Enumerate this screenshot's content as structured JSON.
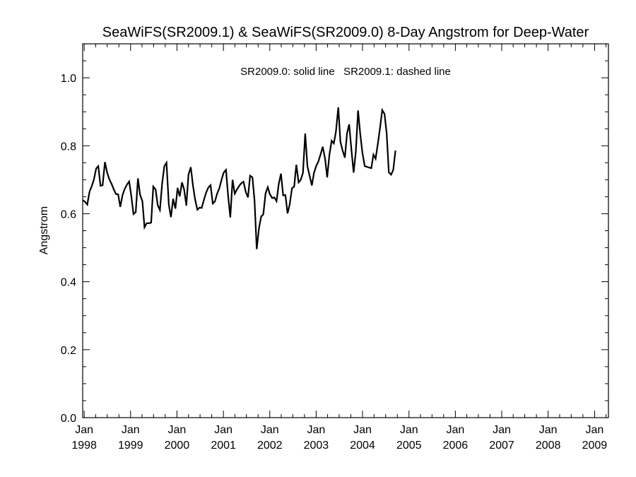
{
  "chart_data": {
    "type": "line",
    "title": "SeaWiFS(SR2009.1) & SeaWiFS(SR2009.0) 8-Day Angstrom for Deep-Water",
    "ylabel": "Angstrom",
    "xlabel": "",
    "annotation": "SR2009.0: solid line   SR2009.1: dashed line",
    "ylim": [
      0.0,
      1.1
    ],
    "xlim": [
      "1997-12-20",
      "2009-04-20"
    ],
    "yticks": [
      "0.0",
      "0.2",
      "0.4",
      "0.6",
      "0.8",
      "1.0"
    ],
    "xticks": [
      {
        "month": "Jan",
        "year": "1998",
        "date": "1998-01-01"
      },
      {
        "month": "Jan",
        "year": "1999",
        "date": "1999-01-01"
      },
      {
        "month": "Jan",
        "year": "2000",
        "date": "2000-01-01"
      },
      {
        "month": "Jan",
        "year": "2001",
        "date": "2001-01-01"
      },
      {
        "month": "Jan",
        "year": "2002",
        "date": "2002-01-01"
      },
      {
        "month": "Jan",
        "year": "2003",
        "date": "2003-01-01"
      },
      {
        "month": "Jan",
        "year": "2004",
        "date": "2004-01-01"
      },
      {
        "month": "Jan",
        "year": "2005",
        "date": "2005-01-01"
      },
      {
        "month": "Jan",
        "year": "2006",
        "date": "2006-01-01"
      },
      {
        "month": "Jan",
        "year": "2007",
        "date": "2007-01-01"
      },
      {
        "month": "Jan",
        "year": "2008",
        "date": "2008-01-01"
      },
      {
        "month": "Jan",
        "year": "2009",
        "date": "2009-01-01"
      }
    ],
    "grid": false,
    "series": [
      {
        "name": "SR2009.0",
        "style": "solid",
        "color": "#000000",
        "points": [
          [
            "1997-12-22",
            0.64
          ],
          [
            "1998-01-08",
            0.635
          ],
          [
            "1998-01-25",
            0.627
          ],
          [
            "1998-02-12",
            0.665
          ],
          [
            "1998-03-01",
            0.681
          ],
          [
            "1998-03-18",
            0.7
          ],
          [
            "1998-04-05",
            0.733
          ],
          [
            "1998-04-22",
            0.74
          ],
          [
            "1998-05-09",
            0.682
          ],
          [
            "1998-05-26",
            0.684
          ],
          [
            "1998-06-13",
            0.752
          ],
          [
            "1998-06-30",
            0.722
          ],
          [
            "1998-07-17",
            0.702
          ],
          [
            "1998-08-04",
            0.688
          ],
          [
            "1998-08-21",
            0.672
          ],
          [
            "1998-09-08",
            0.658
          ],
          [
            "1998-09-25",
            0.657
          ],
          [
            "1998-10-12",
            0.62
          ],
          [
            "1998-10-30",
            0.655
          ],
          [
            "1998-11-16",
            0.673
          ],
          [
            "1998-12-04",
            0.686
          ],
          [
            "1998-12-21",
            0.695
          ],
          [
            "1999-01-07",
            0.652
          ],
          [
            "1999-01-24",
            0.599
          ],
          [
            "1999-02-11",
            0.605
          ],
          [
            "1999-02-28",
            0.704
          ],
          [
            "1999-03-17",
            0.656
          ],
          [
            "1999-04-04",
            0.637
          ],
          [
            "1999-04-21",
            0.56
          ],
          [
            "1999-05-08",
            0.572
          ],
          [
            "1999-05-26",
            0.572
          ],
          [
            "1999-06-12",
            0.574
          ],
          [
            "1999-06-29",
            0.68
          ],
          [
            "1999-07-17",
            0.671
          ],
          [
            "1999-08-03",
            0.625
          ],
          [
            "1999-08-20",
            0.611
          ],
          [
            "1999-09-07",
            0.69
          ],
          [
            "1999-09-24",
            0.74
          ],
          [
            "1999-10-11",
            0.75
          ],
          [
            "1999-10-29",
            0.627
          ],
          [
            "1999-11-15",
            0.59
          ],
          [
            "1999-12-02",
            0.644
          ],
          [
            "1999-12-20",
            0.615
          ],
          [
            "2000-01-06",
            0.676
          ],
          [
            "2000-01-23",
            0.651
          ],
          [
            "2000-02-10",
            0.692
          ],
          [
            "2000-02-27",
            0.671
          ],
          [
            "2000-03-15",
            0.624
          ],
          [
            "2000-04-01",
            0.715
          ],
          [
            "2000-04-19",
            0.737
          ],
          [
            "2000-05-06",
            0.684
          ],
          [
            "2000-05-23",
            0.642
          ],
          [
            "2000-06-10",
            0.612
          ],
          [
            "2000-06-27",
            0.618
          ],
          [
            "2000-07-14",
            0.617
          ],
          [
            "2000-08-01",
            0.642
          ],
          [
            "2000-08-18",
            0.662
          ],
          [
            "2000-09-04",
            0.677
          ],
          [
            "2000-09-22",
            0.684
          ],
          [
            "2000-10-09",
            0.63
          ],
          [
            "2000-10-26",
            0.636
          ],
          [
            "2000-11-13",
            0.66
          ],
          [
            "2000-11-30",
            0.675
          ],
          [
            "2000-12-17",
            0.7
          ],
          [
            "2001-01-03",
            0.721
          ],
          [
            "2001-01-21",
            0.729
          ],
          [
            "2001-02-07",
            0.653
          ],
          [
            "2001-02-24",
            0.589
          ],
          [
            "2001-03-14",
            0.7
          ],
          [
            "2001-03-31",
            0.659
          ],
          [
            "2001-04-17",
            0.671
          ],
          [
            "2001-05-05",
            0.682
          ],
          [
            "2001-05-22",
            0.69
          ],
          [
            "2001-06-08",
            0.694
          ],
          [
            "2001-06-26",
            0.664
          ],
          [
            "2001-07-13",
            0.648
          ],
          [
            "2001-07-30",
            0.712
          ],
          [
            "2001-08-17",
            0.707
          ],
          [
            "2001-09-03",
            0.639
          ],
          [
            "2001-09-20",
            0.496
          ],
          [
            "2001-10-08",
            0.558
          ],
          [
            "2001-10-25",
            0.592
          ],
          [
            "2001-11-11",
            0.598
          ],
          [
            "2001-11-29",
            0.66
          ],
          [
            "2001-12-16",
            0.678
          ],
          [
            "2002-01-02",
            0.657
          ],
          [
            "2002-01-20",
            0.646
          ],
          [
            "2002-02-06",
            0.648
          ],
          [
            "2002-02-23",
            0.637
          ],
          [
            "2002-03-13",
            0.688
          ],
          [
            "2002-03-30",
            0.718
          ],
          [
            "2002-04-16",
            0.654
          ],
          [
            "2002-05-04",
            0.655
          ],
          [
            "2002-05-21",
            0.601
          ],
          [
            "2002-06-07",
            0.628
          ],
          [
            "2002-06-25",
            0.675
          ],
          [
            "2002-07-12",
            0.68
          ],
          [
            "2002-07-29",
            0.744
          ],
          [
            "2002-08-16",
            0.692
          ],
          [
            "2002-09-02",
            0.7
          ],
          [
            "2002-09-19",
            0.72
          ],
          [
            "2002-10-07",
            0.836
          ],
          [
            "2002-10-24",
            0.74
          ],
          [
            "2002-11-10",
            0.713
          ],
          [
            "2002-11-28",
            0.683
          ],
          [
            "2002-12-15",
            0.72
          ],
          [
            "2003-01-01",
            0.74
          ],
          [
            "2003-01-19",
            0.754
          ],
          [
            "2003-02-05",
            0.775
          ],
          [
            "2003-02-22",
            0.797
          ],
          [
            "2003-03-12",
            0.762
          ],
          [
            "2003-03-29",
            0.707
          ],
          [
            "2003-04-15",
            0.773
          ],
          [
            "2003-05-03",
            0.815
          ],
          [
            "2003-05-20",
            0.807
          ],
          [
            "2003-06-06",
            0.842
          ],
          [
            "2003-06-24",
            0.913
          ],
          [
            "2003-07-11",
            0.812
          ],
          [
            "2003-07-28",
            0.786
          ],
          [
            "2003-08-15",
            0.765
          ],
          [
            "2003-09-01",
            0.837
          ],
          [
            "2003-09-18",
            0.863
          ],
          [
            "2003-10-06",
            0.786
          ],
          [
            "2003-10-23",
            0.721
          ],
          [
            "2003-11-09",
            0.782
          ],
          [
            "2003-11-27",
            0.904
          ],
          [
            "2003-12-14",
            0.834
          ],
          [
            "2003-12-31",
            0.78
          ],
          [
            "2004-01-18",
            0.74
          ],
          [
            "2004-02-04",
            0.738
          ],
          [
            "2004-02-21",
            0.736
          ],
          [
            "2004-03-10",
            0.734
          ],
          [
            "2004-03-27",
            0.774
          ],
          [
            "2004-04-13",
            0.762
          ],
          [
            "2004-05-01",
            0.806
          ],
          [
            "2004-05-18",
            0.853
          ],
          [
            "2004-06-04",
            0.905
          ],
          [
            "2004-06-22",
            0.894
          ],
          [
            "2004-07-09",
            0.836
          ],
          [
            "2004-07-26",
            0.722
          ],
          [
            "2004-08-13",
            0.715
          ],
          [
            "2004-08-30",
            0.729
          ],
          [
            "2004-09-16",
            0.786
          ]
        ]
      }
    ]
  }
}
